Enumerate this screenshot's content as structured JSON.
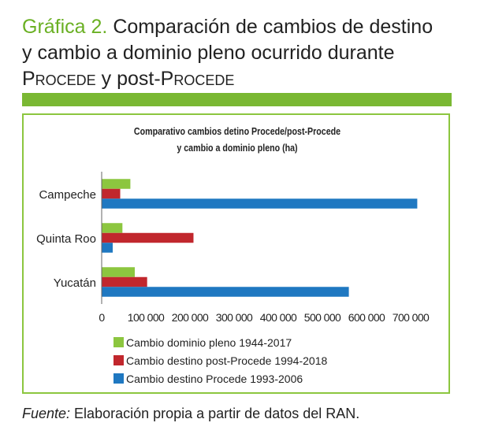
{
  "heading": {
    "lead": "Gráfica 2.",
    "line1_rest": " Comparación de cambios de destino",
    "line2": "y cambio a dominio pleno ocurrido durante",
    "procede1": "Procede",
    "mid": " y post-",
    "procede2": "Procede"
  },
  "source": {
    "label": "Fuente:",
    "text": " Elaboración propia a partir de datos del RAN."
  },
  "colors": {
    "accent_green": "#7ab833",
    "series_green": "#8cc63f",
    "series_red": "#c1272d",
    "series_blue": "#1f78c1"
  },
  "chart_data": {
    "type": "bar",
    "orientation": "horizontal",
    "title": "Comparativo cambios detino Procede/post-Procede",
    "subtitle": "y cambio a dominio pleno (ha)",
    "categories": [
      "Campeche",
      "Quinta Roo",
      "Yucatán"
    ],
    "series": [
      {
        "name": "Cambio dominio pleno 1944-2017",
        "color": "#8cc63f",
        "values": [
          65000,
          47000,
          75000
        ]
      },
      {
        "name": "Cambio destino post-Procede 1994-2018",
        "color": "#c1272d",
        "values": [
          42000,
          208000,
          103000
        ]
      },
      {
        "name": "Cambio destino Procede 1993-2006",
        "color": "#1f78c1",
        "values": [
          715000,
          25000,
          560000
        ]
      }
    ],
    "xlim": [
      0,
      700000
    ],
    "xticks": [
      0,
      100000,
      200000,
      300000,
      400000,
      500000,
      600000,
      700000
    ],
    "xtick_labels": [
      "0",
      "100 000",
      "200 000",
      "300 000",
      "400 000",
      "500 000",
      "600 000",
      "700 000"
    ],
    "grid": false,
    "legend_position": "bottom"
  }
}
